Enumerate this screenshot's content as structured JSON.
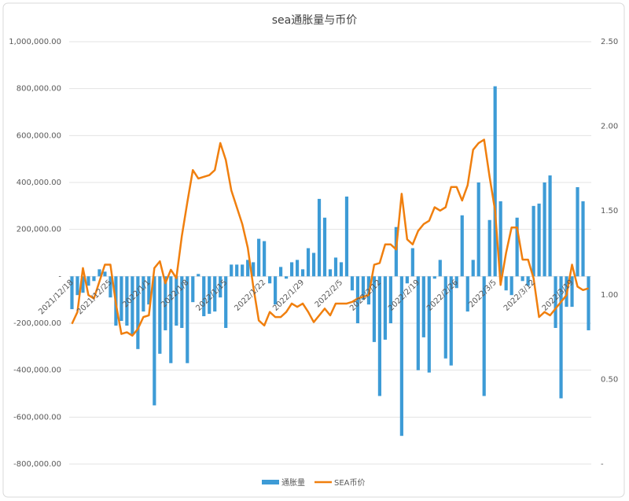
{
  "chart_data": {
    "type": "combo",
    "title": "sea通胀量与币价",
    "categories": [
      "2021/12/18",
      null,
      null,
      null,
      null,
      null,
      null,
      "2021/12/25",
      null,
      null,
      null,
      null,
      null,
      null,
      "2022/1/1",
      null,
      null,
      null,
      null,
      null,
      null,
      "2022/1/8",
      null,
      null,
      null,
      null,
      null,
      null,
      "2022/1/15",
      null,
      null,
      null,
      null,
      null,
      null,
      "2022/1/22",
      null,
      null,
      null,
      null,
      null,
      null,
      "2022/1/29",
      null,
      null,
      null,
      null,
      null,
      null,
      "2022/2/5",
      null,
      null,
      null,
      null,
      null,
      null,
      "2022/2/12",
      null,
      null,
      null,
      null,
      null,
      null,
      "2022/2/19",
      null,
      null,
      null,
      null,
      null,
      null,
      "2022/2/26",
      null,
      null,
      null,
      null,
      null,
      null,
      "2022/3/5",
      null,
      null,
      null,
      null,
      null,
      null,
      "2022/3/12",
      null,
      null,
      null,
      null,
      null,
      null,
      "2022/3/19",
      null,
      null,
      null
    ],
    "series": [
      {
        "name": "通胀量",
        "type": "bar",
        "color": "#3d9bd6",
        "values": [
          -140000,
          -80000,
          -70000,
          -40000,
          -20000,
          30000,
          20000,
          -90000,
          -210000,
          -190000,
          -210000,
          -250000,
          -310000,
          -150000,
          -120000,
          -550000,
          -330000,
          -230000,
          -370000,
          -210000,
          -220000,
          -370000,
          -110000,
          10000,
          -170000,
          -160000,
          -150000,
          -90000,
          -220000,
          50000,
          50000,
          50000,
          70000,
          60000,
          160000,
          150000,
          -30000,
          -120000,
          40000,
          -10000,
          60000,
          70000,
          30000,
          120000,
          100000,
          330000,
          250000,
          30000,
          80000,
          60000,
          340000,
          -60000,
          -200000,
          -100000,
          -120000,
          -280000,
          -510000,
          -270000,
          -200000,
          210000,
          -680000,
          -30000,
          120000,
          -400000,
          -260000,
          -410000,
          -10000,
          70000,
          -350000,
          -380000,
          -50000,
          260000,
          -150000,
          70000,
          400000,
          -510000,
          240000,
          810000,
          320000,
          -60000,
          -80000,
          250000,
          -20000,
          -40000,
          300000,
          310000,
          400000,
          430000,
          -220000,
          -520000,
          -130000,
          -130000,
          380000,
          320000,
          -230000
        ]
      },
      {
        "name": "SEA币价",
        "type": "line",
        "axis": "y2",
        "color": "#f07f0e",
        "values": [
          0.83,
          0.9,
          1.16,
          1.0,
          0.98,
          1.08,
          1.18,
          1.18,
          0.95,
          0.77,
          0.78,
          0.76,
          0.8,
          0.87,
          0.88,
          1.16,
          1.2,
          1.07,
          1.15,
          1.1,
          1.35,
          1.55,
          1.74,
          1.69,
          1.7,
          1.71,
          1.74,
          1.9,
          1.8,
          1.62,
          1.52,
          1.42,
          1.28,
          1.05,
          0.85,
          0.82,
          0.9,
          0.87,
          0.87,
          0.9,
          0.95,
          0.93,
          0.95,
          0.9,
          0.84,
          0.88,
          0.92,
          0.88,
          0.95,
          0.95,
          0.95,
          0.96,
          0.98,
          0.99,
          1.0,
          1.18,
          1.19,
          1.3,
          1.3,
          1.27,
          1.6,
          1.33,
          1.3,
          1.38,
          1.42,
          1.44,
          1.52,
          1.5,
          1.52,
          1.64,
          1.64,
          1.56,
          1.65,
          1.86,
          1.9,
          1.92,
          1.7,
          1.5,
          1.06,
          1.25,
          1.4,
          1.4,
          1.21,
          1.21,
          1.1,
          0.87,
          0.9,
          0.88,
          0.92,
          0.96,
          1.0,
          1.18,
          1.05,
          1.03,
          1.04
        ]
      }
    ],
    "ylim": [
      -800000,
      1000000
    ],
    "yticks": [
      {
        "value": -800000,
        "label": "-800,000.00"
      },
      {
        "value": -600000,
        "label": "-600,000.00"
      },
      {
        "value": -400000,
        "label": "-400,000.00"
      },
      {
        "value": -200000,
        "label": "-200,000.00"
      },
      {
        "value": 0,
        "label": "-"
      },
      {
        "value": 200000,
        "label": "200,000.00"
      },
      {
        "value": 400000,
        "label": "400,000.00"
      },
      {
        "value": 600000,
        "label": "600,000.00"
      },
      {
        "value": 800000,
        "label": "800,000.00"
      },
      {
        "value": 1000000,
        "label": "1,000,000.00"
      }
    ],
    "y2lim": [
      0,
      2.5
    ],
    "y2ticks": [
      {
        "value": 0,
        "label": "-"
      },
      {
        "value": 0.5,
        "label": "0.50"
      },
      {
        "value": 1,
        "label": "1.00"
      },
      {
        "value": 1.5,
        "label": "1.50"
      },
      {
        "value": 2,
        "label": "2.00"
      },
      {
        "value": 2.5,
        "label": "2.50"
      }
    ],
    "grid": true
  }
}
